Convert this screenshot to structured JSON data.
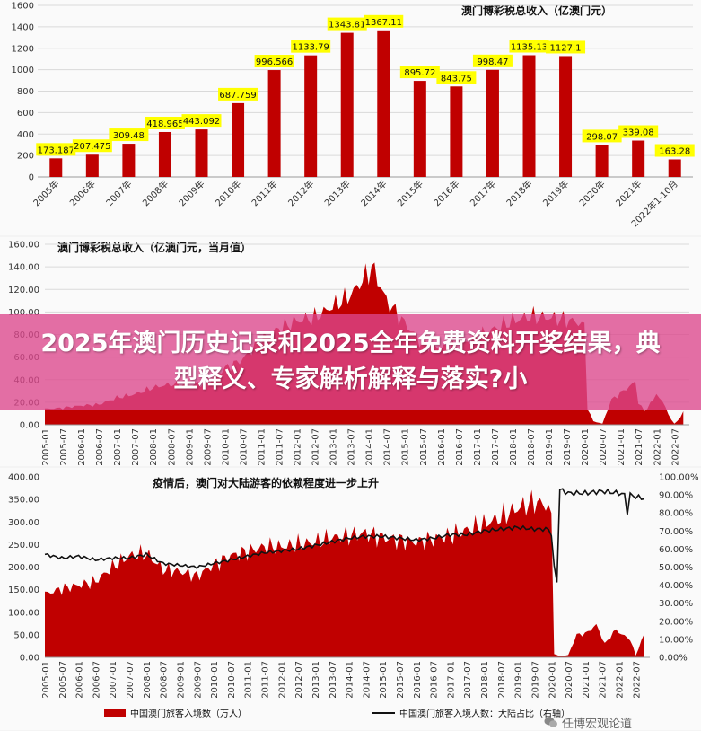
{
  "colors": {
    "bar": "#c00000",
    "label_bg": "#ffff00",
    "line": "#111111",
    "banner": "#dc468c"
  },
  "banner": {
    "text": "2025年澳门历史记录和2025全年免费资料开奖结果，典型释义、专家解析解释与落实?小"
  },
  "watermark": {
    "text": "任博宏观论道",
    "icon": "wechat-icon"
  },
  "chart_data": [
    {
      "type": "bar",
      "title": "澳门博彩税总收入（亿澳门元）",
      "categories": [
        "2005年",
        "2006年",
        "2007年",
        "2008年",
        "2009年",
        "2010年",
        "2011年",
        "2012年",
        "2013年",
        "2014年",
        "2015年",
        "2016年",
        "2017年",
        "2018年",
        "2019年",
        "2020年",
        "2021年",
        "2022年1-10月"
      ],
      "values": [
        173.187,
        207.475,
        309.48,
        418.965,
        443.092,
        687.759,
        996.566,
        1133.79,
        1343.81,
        1367.11,
        895.72,
        843.75,
        998.47,
        1135.13,
        1127.1,
        298.07,
        339.08,
        163.28
      ],
      "labels": [
        "173.187",
        "207.475",
        "309.48",
        "418.965",
        "443.092",
        "687.759",
        "996.566",
        "1133.79",
        "1343.81",
        "1367.11",
        "895.72",
        "843.75",
        "998.47",
        "1135.13",
        "1127.1",
        "298.07",
        "339.08",
        "163.28"
      ],
      "ylim": [
        0,
        1600
      ],
      "yticks": [
        "0",
        "200",
        "400",
        "600",
        "800",
        "1000",
        "1200",
        "1400",
        "1600"
      ],
      "grid": true
    },
    {
      "type": "area",
      "title": "澳门博彩税总收入（亿澳门元，当月值）",
      "ylim": [
        0,
        160
      ],
      "yticks": [
        "0.00",
        "20.00",
        "40.00",
        "60.00",
        "80.00",
        "100.00",
        "120.00",
        "140.00",
        "160.00"
      ],
      "xticks": [
        "2005-01",
        "2005-07",
        "2006-01",
        "2006-07",
        "2007-01",
        "2007-07",
        "2008-01",
        "2008-07",
        "2009-01",
        "2009-07",
        "2010-01",
        "2010-07",
        "2011-01",
        "2011-07",
        "2012-01",
        "2012-07",
        "2013-01",
        "2013-07",
        "2014-01",
        "2014-07",
        "2015-01",
        "2015-07",
        "2016-01",
        "2016-07",
        "2017-01",
        "2017-07",
        "2018-01",
        "2018-07",
        "2019-01",
        "2019-07",
        "2020-01",
        "2020-07",
        "2021-01",
        "2021-07",
        "2022-01",
        "2022-07"
      ],
      "anchors": [
        [
          "2005-01",
          14
        ],
        [
          "2005-07",
          15
        ],
        [
          "2006-01",
          17
        ],
        [
          "2006-07",
          18
        ],
        [
          "2007-01",
          24
        ],
        [
          "2007-07",
          27
        ],
        [
          "2008-01",
          33
        ],
        [
          "2008-07",
          36
        ],
        [
          "2009-01",
          35
        ],
        [
          "2009-07",
          37
        ],
        [
          "2010-01",
          50
        ],
        [
          "2010-07",
          58
        ],
        [
          "2011-01",
          75
        ],
        [
          "2011-07",
          85
        ],
        [
          "2012-01",
          92
        ],
        [
          "2012-07",
          95
        ],
        [
          "2013-01",
          105
        ],
        [
          "2013-07",
          115
        ],
        [
          "2014-01",
          135
        ],
        [
          "2014-02",
          141
        ],
        [
          "2014-07",
          110
        ],
        [
          "2015-01",
          90
        ],
        [
          "2015-07",
          72
        ],
        [
          "2016-01",
          68
        ],
        [
          "2016-07",
          70
        ],
        [
          "2017-01",
          78
        ],
        [
          "2017-07",
          85
        ],
        [
          "2018-01",
          92
        ],
        [
          "2018-07",
          96
        ],
        [
          "2019-01",
          95
        ],
        [
          "2019-07",
          93
        ],
        [
          "2019-12",
          90
        ],
        [
          "2020-01",
          85
        ],
        [
          "2020-02",
          15
        ],
        [
          "2020-04",
          3
        ],
        [
          "2020-07",
          1
        ],
        [
          "2020-10",
          22
        ],
        [
          "2021-01",
          28
        ],
        [
          "2021-06",
          38
        ],
        [
          "2021-07",
          20
        ],
        [
          "2021-09",
          12
        ],
        [
          "2021-12",
          22
        ],
        [
          "2022-01",
          28
        ],
        [
          "2022-04",
          16
        ],
        [
          "2022-06",
          4
        ],
        [
          "2022-07",
          1
        ],
        [
          "2022-09",
          6
        ],
        [
          "2022-10",
          12
        ]
      ],
      "grid": true
    },
    {
      "type": "area",
      "title": "疫情后，澳门对大陆游客的依赖程度进一步上升",
      "ylim": [
        0,
        400
      ],
      "yticks": [
        "0.00",
        "50.00",
        "100.00",
        "150.00",
        "200.00",
        "250.00",
        "300.00",
        "350.00",
        "400.00"
      ],
      "y2lim": [
        0,
        100
      ],
      "y2ticks": [
        "0.00%",
        "10.00%",
        "20.00%",
        "30.00%",
        "40.00%",
        "50.00%",
        "60.00%",
        "70.00%",
        "80.00%",
        "90.00%",
        "100.00%"
      ],
      "xticks": [
        "2005-01",
        "2005-07",
        "2006-01",
        "2006-07",
        "2007-01",
        "2007-07",
        "2008-01",
        "2008-07",
        "2009-01",
        "2009-07",
        "2010-01",
        "2010-07",
        "2011-01",
        "2011-07",
        "2012-01",
        "2012-07",
        "2013-01",
        "2013-07",
        "2014-01",
        "2014-07",
        "2015-01",
        "2015-07",
        "2016-01",
        "2016-07",
        "2017-01",
        "2017-07",
        "2018-01",
        "2018-07",
        "2019-01",
        "2019-07",
        "2020-01",
        "2020-07",
        "2021-01",
        "2021-07",
        "2022-01",
        "2022-07"
      ],
      "series": [
        {
          "name": "中国澳门旅客入境数（万人）",
          "axis": "left",
          "anchors": [
            [
              "2005-01",
              140
            ],
            [
              "2005-07",
              152
            ],
            [
              "2006-01",
              160
            ],
            [
              "2006-07",
              168
            ],
            [
              "2007-01",
              200
            ],
            [
              "2007-07",
              225
            ],
            [
              "2008-01",
              230
            ],
            [
              "2008-07",
              195
            ],
            [
              "2009-01",
              190
            ],
            [
              "2009-07",
              180
            ],
            [
              "2010-01",
              205
            ],
            [
              "2010-07",
              225
            ],
            [
              "2011-01",
              235
            ],
            [
              "2011-07",
              245
            ],
            [
              "2012-01",
              245
            ],
            [
              "2012-07",
              250
            ],
            [
              "2013-01",
              255
            ],
            [
              "2013-07",
              265
            ],
            [
              "2014-01",
              270
            ],
            [
              "2014-07",
              275
            ],
            [
              "2015-01",
              265
            ],
            [
              "2015-07",
              260
            ],
            [
              "2016-01",
              255
            ],
            [
              "2016-07",
              262
            ],
            [
              "2017-01",
              270
            ],
            [
              "2017-07",
              282
            ],
            [
              "2018-01",
              295
            ],
            [
              "2018-07",
              310
            ],
            [
              "2019-01",
              330
            ],
            [
              "2019-07",
              345
            ],
            [
              "2019-12",
              335
            ],
            [
              "2020-01",
              300
            ],
            [
              "2020-02",
              8
            ],
            [
              "2020-04",
              2
            ],
            [
              "2020-07",
              5
            ],
            [
              "2020-10",
              50
            ],
            [
              "2021-01",
              52
            ],
            [
              "2021-05",
              72
            ],
            [
              "2021-08",
              30
            ],
            [
              "2021-12",
              62
            ],
            [
              "2022-01",
              55
            ],
            [
              "2022-05",
              40
            ],
            [
              "2022-07",
              4
            ],
            [
              "2022-10",
              52
            ]
          ]
        },
        {
          "name": "中国澳门旅客入境人数：大陆占比（右轴）",
          "axis": "right",
          "anchors": [
            [
              "2005-01",
              57
            ],
            [
              "2005-07",
              55
            ],
            [
              "2006-01",
              56
            ],
            [
              "2006-07",
              54
            ],
            [
              "2007-01",
              55
            ],
            [
              "2007-07",
              55
            ],
            [
              "2008-01",
              57
            ],
            [
              "2008-07",
              52
            ],
            [
              "2009-01",
              51
            ],
            [
              "2009-07",
              50
            ],
            [
              "2010-01",
              52
            ],
            [
              "2010-07",
              54
            ],
            [
              "2011-01",
              56
            ],
            [
              "2011-07",
              58
            ],
            [
              "2012-01",
              59
            ],
            [
              "2012-07",
              60
            ],
            [
              "2013-01",
              62
            ],
            [
              "2013-07",
              64
            ],
            [
              "2014-01",
              66
            ],
            [
              "2014-07",
              67
            ],
            [
              "2015-01",
              67
            ],
            [
              "2015-07",
              66
            ],
            [
              "2016-01",
              65
            ],
            [
              "2016-07",
              66
            ],
            [
              "2017-01",
              68
            ],
            [
              "2017-07",
              68
            ],
            [
              "2018-01",
              70
            ],
            [
              "2018-07",
              71
            ],
            [
              "2019-01",
              72
            ],
            [
              "2019-07",
              71
            ],
            [
              "2019-12",
              71
            ],
            [
              "2020-01",
              68
            ],
            [
              "2020-02",
              50
            ],
            [
              "2020-03",
              42
            ],
            [
              "2020-04",
              93
            ],
            [
              "2020-07",
              91
            ],
            [
              "2021-01",
              91
            ],
            [
              "2021-07",
              92
            ],
            [
              "2022-01",
              91
            ],
            [
              "2022-03",
              90
            ],
            [
              "2022-04",
              80
            ],
            [
              "2022-05",
              90
            ],
            [
              "2022-07",
              89
            ],
            [
              "2022-10",
              88
            ]
          ]
        }
      ],
      "grid": false
    }
  ]
}
